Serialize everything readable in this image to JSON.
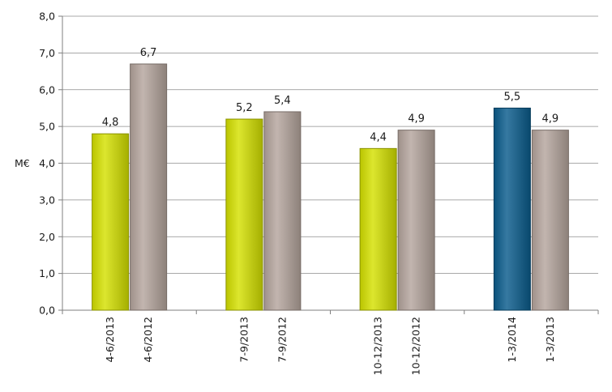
{
  "chart_data": {
    "type": "bar",
    "ylabel": "M€",
    "ylim": [
      0,
      8
    ],
    "yticks": [
      "0,0",
      "1,0",
      "2,0",
      "3,0",
      "4,0",
      "5,0",
      "6,0",
      "7,0",
      "8,0"
    ],
    "grid": true,
    "bars": [
      {
        "label": "4-6/2013",
        "value": 4.8,
        "value_label": "4,8",
        "color": "#d4e000"
      },
      {
        "label": "4-6/2012",
        "value": 6.7,
        "value_label": "6,7",
        "color": "#b5a59d"
      },
      {
        "label": "7-9/2013",
        "value": 5.2,
        "value_label": "5,2",
        "color": "#d4e000"
      },
      {
        "label": "7-9/2012",
        "value": 5.4,
        "value_label": "5,4",
        "color": "#b5a59d"
      },
      {
        "label": "10-12/2013",
        "value": 4.4,
        "value_label": "4,4",
        "color": "#d4e000"
      },
      {
        "label": "10-12/2012",
        "value": 4.9,
        "value_label": "4,9",
        "color": "#b5a59d"
      },
      {
        "label": "1-3/2014",
        "value": 5.5,
        "value_label": "5,5",
        "color": "#0a5c8c"
      },
      {
        "label": "1-3/2013",
        "value": 4.9,
        "value_label": "4,9",
        "color": "#b5a59d"
      }
    ]
  }
}
